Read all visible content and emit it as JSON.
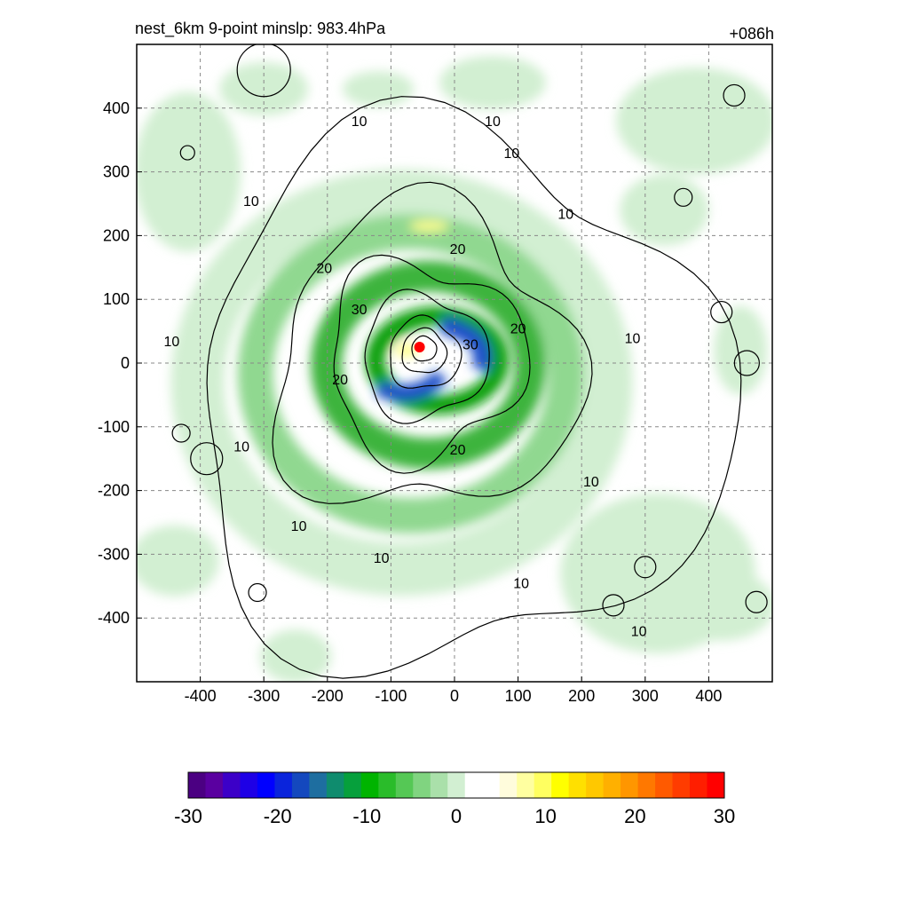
{
  "header": {
    "title_left": "nest_6km  9-point minslp: 983.4hPa",
    "title_right": "+086h"
  },
  "chart_data": {
    "type": "heatmap",
    "title": "nest_6km  9-point minslp: 983.4hPa",
    "forecast_hour": "+086h",
    "xlabel": "",
    "ylabel": "",
    "xlim": [
      -500,
      500
    ],
    "ylim": [
      -500,
      500
    ],
    "x_ticks": [
      -400,
      -300,
      -200,
      -100,
      0,
      100,
      200,
      300,
      400
    ],
    "y_ticks": [
      400,
      300,
      200,
      100,
      0,
      -100,
      -200,
      -300,
      -400
    ],
    "grid": true,
    "center_marker": {
      "x": -55,
      "y": 25,
      "color": "#ff0000"
    },
    "shaded_field": {
      "colorbar_ticks": [
        -30,
        -20,
        -10,
        0,
        10,
        20,
        30
      ],
      "colorbar_range": [
        -30,
        30
      ],
      "colors": [
        "#4b0082",
        "#5a00a0",
        "#3c00c8",
        "#1e00e6",
        "#0000ff",
        "#0a24dc",
        "#1448be",
        "#1e6ea0",
        "#0f8c6e",
        "#06a03c",
        "#00b400",
        "#2abc2a",
        "#55c855",
        "#80d480",
        "#aae0aa",
        "#d2efd2",
        "#ffffff",
        "#ffffff",
        "#fffcdc",
        "#ffffa0",
        "#ffff60",
        "#ffff00",
        "#ffe000",
        "#ffc800",
        "#ffb000",
        "#ff9600",
        "#ff7800",
        "#ff5a00",
        "#ff3c00",
        "#ff1e00",
        "#ff0000"
      ]
    },
    "contour_labels": [
      {
        "text": "10",
        "x": -150,
        "y": 380
      },
      {
        "text": "10",
        "x": 60,
        "y": 380
      },
      {
        "text": "10",
        "x": 90,
        "y": 330
      },
      {
        "text": "10",
        "x": -320,
        "y": 255
      },
      {
        "text": "10",
        "x": 175,
        "y": 235
      },
      {
        "text": "20",
        "x": -205,
        "y": 150
      },
      {
        "text": "20",
        "x": 5,
        "y": 180
      },
      {
        "text": "30",
        "x": -150,
        "y": 85
      },
      {
        "text": "30",
        "x": 25,
        "y": 30
      },
      {
        "text": "20",
        "x": 100,
        "y": 55
      },
      {
        "text": "10",
        "x": -445,
        "y": 35
      },
      {
        "text": "10",
        "x": 280,
        "y": 40
      },
      {
        "text": "20",
        "x": -180,
        "y": -25
      },
      {
        "text": "20",
        "x": 5,
        "y": -135
      },
      {
        "text": "10",
        "x": -335,
        "y": -130
      },
      {
        "text": "10",
        "x": 215,
        "y": -185
      },
      {
        "text": "10",
        "x": -245,
        "y": -255
      },
      {
        "text": "10",
        "x": -115,
        "y": -305
      },
      {
        "text": "10",
        "x": 105,
        "y": -345
      },
      {
        "text": "10",
        "x": 290,
        "y": -420
      }
    ]
  }
}
